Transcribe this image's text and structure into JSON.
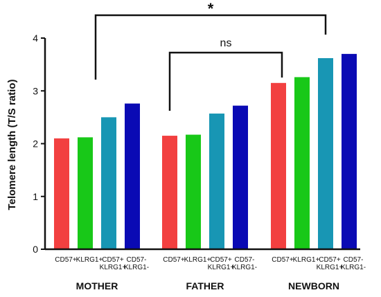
{
  "chart_data": {
    "type": "bar",
    "ylabel": "Telomere length (T/S ratio)",
    "ylim": [
      0,
      4
    ],
    "yticks": [
      0,
      1,
      2,
      3,
      4
    ],
    "grid": false,
    "groups": [
      {
        "label": "MOTHER",
        "bars": [
          {
            "category": "CD57+",
            "value": 2.1,
            "color": "#f24040"
          },
          {
            "category": "KLRG1+",
            "value": 2.12,
            "color": "#18c818"
          },
          {
            "category": "CD57+ KLRG1+",
            "value": 2.5,
            "color": "#1896b4"
          },
          {
            "category": "CD57- KLRG1-",
            "value": 2.76,
            "color": "#0a0ab4"
          }
        ]
      },
      {
        "label": "FATHER",
        "bars": [
          {
            "category": "CD57+",
            "value": 2.15,
            "color": "#f24040"
          },
          {
            "category": "KLRG1+",
            "value": 2.17,
            "color": "#18c818"
          },
          {
            "category": "CD57+ KLRG1+",
            "value": 2.57,
            "color": "#1896b4"
          },
          {
            "category": "CD57- KLRG1-",
            "value": 2.72,
            "color": "#0a0ab4"
          }
        ]
      },
      {
        "label": "NEWBORN",
        "bars": [
          {
            "category": "CD57+",
            "value": 3.15,
            "color": "#f24040"
          },
          {
            "category": "KLRG1+",
            "value": 3.26,
            "color": "#18c818"
          },
          {
            "category": "CD57+ KLRG1+",
            "value": 3.62,
            "color": "#1896b4"
          },
          {
            "category": "CD57- KLRG1-",
            "value": 3.7,
            "color": "#0a0ab4"
          }
        ]
      }
    ],
    "category_label_lines": [
      [
        "CD57+",
        ""
      ],
      [
        "KLRG1+",
        ""
      ],
      [
        "CD57+",
        "KLRG1+"
      ],
      [
        "CD57-",
        "KLRG1-"
      ]
    ],
    "annotations": [
      {
        "name": "significance-star-bracket",
        "text": "*",
        "from_group": 0,
        "to_group": 2
      },
      {
        "name": "ns-bracket",
        "text": "ns",
        "from_group": 1,
        "to_group": 2
      }
    ]
  }
}
